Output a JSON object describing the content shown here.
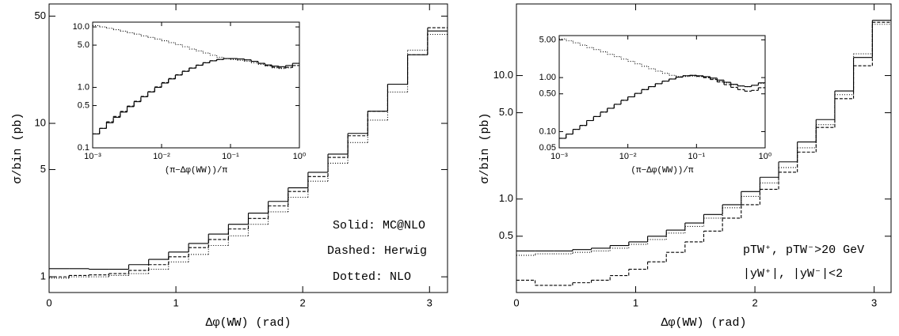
{
  "chart_data": [
    {
      "type": "histogram",
      "log_y": true,
      "x_label": "Δφ(WW) (rad)",
      "y_label": "σ/bin (pb)",
      "annotations": [
        "Solid: MC@NLO",
        "Dashed: Herwig",
        "Dotted: NLO"
      ],
      "xlim": [
        0,
        3.142
      ],
      "xticks": [
        0,
        1,
        2,
        3
      ],
      "ylim": [
        0.79,
        60
      ],
      "yticks": [
        1,
        5,
        10,
        50
      ],
      "bins": [
        0,
        0.157,
        0.314,
        0.471,
        0.628,
        0.785,
        0.942,
        1.1,
        1.257,
        1.414,
        1.571,
        1.728,
        1.885,
        2.042,
        2.199,
        2.356,
        2.513,
        2.67,
        2.827,
        2.985,
        3.142
      ],
      "series": [
        {
          "line_style": "solid",
          "color": "#000000",
          "values": [
            1.13,
            1.13,
            1.12,
            1.12,
            1.2,
            1.3,
            1.45,
            1.65,
            1.9,
            2.2,
            2.6,
            3.1,
            3.8,
            4.8,
            6.3,
            8.6,
            12,
            18,
            28,
            40
          ]
        },
        {
          "line_style": "dashed",
          "color": "#000000",
          "values": [
            1.0,
            1.02,
            1.03,
            1.05,
            1.1,
            1.2,
            1.35,
            1.55,
            1.75,
            2.05,
            2.4,
            2.9,
            3.6,
            4.5,
            6.0,
            8.3,
            12,
            18,
            28,
            42
          ]
        },
        {
          "line_style": "dotted",
          "color": "#000000",
          "values": [
            0.98,
            1.0,
            1.0,
            1.02,
            1.05,
            1.12,
            1.25,
            1.4,
            1.6,
            1.85,
            2.2,
            2.65,
            3.3,
            4.2,
            5.5,
            7.5,
            10.5,
            16,
            30,
            38
          ]
        }
      ]
    },
    {
      "type": "histogram",
      "log_x": true,
      "log_y": true,
      "x_label": "(π−Δφ(WW))/π",
      "xlim": [
        0.001,
        1
      ],
      "xticks": [
        {
          "value": 0.001,
          "label": "10⁻³"
        },
        {
          "value": 0.01,
          "label": "10⁻²"
        },
        {
          "value": 0.1,
          "label": "10⁻¹"
        },
        {
          "value": 1,
          "label": "10⁰"
        }
      ],
      "ylim": [
        0.1,
        12
      ],
      "yticks": [
        0.1,
        0.5,
        {
          "value": 1,
          "label": "1.0"
        },
        {
          "value": 5,
          "label": "5.0"
        },
        {
          "value": 10,
          "label": "10.0"
        }
      ],
      "bins": [
        0.001,
        0.001259,
        0.001585,
        0.001995,
        0.002512,
        0.003162,
        0.003981,
        0.005012,
        0.00631,
        0.007943,
        0.01,
        0.01259,
        0.01585,
        0.01995,
        0.02512,
        0.03162,
        0.03981,
        0.05012,
        0.0631,
        0.07943,
        0.1,
        0.1259,
        0.1585,
        0.1995,
        0.2512,
        0.3162,
        0.3981,
        0.5012,
        0.631,
        0.7943,
        1
      ],
      "series": [
        {
          "line_style": "solid",
          "color": "#000000",
          "values": [
            0.17,
            0.21,
            0.26,
            0.32,
            0.39,
            0.48,
            0.58,
            0.7,
            0.84,
            1.0,
            1.18,
            1.38,
            1.6,
            1.84,
            2.08,
            2.32,
            2.55,
            2.75,
            2.9,
            3.0,
            3.0,
            2.95,
            2.85,
            2.7,
            2.5,
            2.35,
            2.25,
            2.2,
            2.3,
            2.5
          ]
        },
        {
          "line_style": "dashed",
          "color": "#000000",
          "values": [
            0.17,
            0.21,
            0.27,
            0.33,
            0.4,
            0.49,
            0.59,
            0.71,
            0.85,
            1.02,
            1.2,
            1.4,
            1.62,
            1.86,
            2.1,
            2.34,
            2.56,
            2.76,
            2.9,
            3.0,
            3.0,
            2.95,
            2.85,
            2.7,
            2.5,
            2.3,
            2.15,
            2.1,
            2.15,
            2.3
          ]
        },
        {
          "line_style": "dotted",
          "color": "#000000",
          "values": [
            10.5,
            10,
            9.5,
            9.0,
            8.5,
            8.0,
            7.6,
            7.1,
            6.7,
            6.3,
            5.9,
            5.5,
            5.1,
            4.7,
            4.3,
            4.0,
            3.7,
            3.4,
            3.15,
            3.0,
            2.9,
            2.8,
            2.7,
            2.55,
            2.4,
            2.25,
            2.1,
            2.05,
            2.1,
            2.3
          ]
        }
      ]
    },
    {
      "type": "histogram",
      "log_y": true,
      "x_label": "Δφ(WW) (rad)",
      "y_label": "σ/bin (pb)",
      "annotations": [
        "pTW⁺, pTW⁻>20 GeV",
        "|yW⁺|, |yW⁻|<2"
      ],
      "xlim": [
        0,
        3.142
      ],
      "xticks": [
        0,
        1,
        2,
        3
      ],
      "ylim": [
        0.175,
        38
      ],
      "yticks": [
        0.5,
        {
          "value": 1,
          "label": "1.0"
        },
        {
          "value": 5,
          "label": "5.0"
        },
        {
          "value": 10,
          "label": "10.0"
        }
      ],
      "bins": [
        0,
        0.157,
        0.314,
        0.471,
        0.628,
        0.785,
        0.942,
        1.1,
        1.257,
        1.414,
        1.571,
        1.728,
        1.885,
        2.042,
        2.199,
        2.356,
        2.513,
        2.67,
        2.827,
        2.985,
        3.142
      ],
      "series": [
        {
          "line_style": "solid",
          "color": "#000000",
          "values": [
            0.38,
            0.38,
            0.38,
            0.39,
            0.4,
            0.42,
            0.45,
            0.5,
            0.56,
            0.64,
            0.75,
            0.9,
            1.15,
            1.5,
            2.0,
            2.9,
            4.4,
            7.5,
            14,
            28
          ]
        },
        {
          "line_style": "dashed",
          "color": "#000000",
          "values": [
            0.22,
            0.2,
            0.2,
            0.21,
            0.22,
            0.24,
            0.27,
            0.31,
            0.37,
            0.45,
            0.55,
            0.7,
            0.9,
            1.2,
            1.65,
            2.4,
            3.8,
            6.5,
            12,
            27
          ]
        },
        {
          "line_style": "dotted",
          "color": "#000000",
          "values": [
            0.35,
            0.36,
            0.36,
            0.37,
            0.38,
            0.4,
            0.43,
            0.47,
            0.53,
            0.6,
            0.7,
            0.85,
            1.05,
            1.35,
            1.8,
            2.6,
            4.0,
            7.0,
            15,
            26
          ]
        }
      ]
    },
    {
      "type": "histogram",
      "log_x": true,
      "log_y": true,
      "x_label": "(π−Δφ(WW))/π",
      "xlim": [
        0.001,
        1
      ],
      "xticks": [
        {
          "value": 0.001,
          "label": "10⁻³"
        },
        {
          "value": 0.01,
          "label": "10⁻²"
        },
        {
          "value": 0.1,
          "label": "10⁻¹"
        },
        {
          "value": 1,
          "label": "10⁰"
        }
      ],
      "ylim": [
        0.05,
        6
      ],
      "yticks": [
        0.05,
        {
          "value": 0.1,
          "label": "0.10"
        },
        {
          "value": 0.5,
          "label": "0.50"
        },
        {
          "value": 1,
          "label": "1.00"
        },
        {
          "value": 5,
          "label": "5.00"
        }
      ],
      "bins": [
        0.001,
        0.001259,
        0.001585,
        0.001995,
        0.002512,
        0.003162,
        0.003981,
        0.005012,
        0.00631,
        0.007943,
        0.01,
        0.01259,
        0.01585,
        0.01995,
        0.02512,
        0.03162,
        0.03981,
        0.05012,
        0.0631,
        0.07943,
        0.1,
        0.1259,
        0.1585,
        0.1995,
        0.2512,
        0.3162,
        0.3981,
        0.5012,
        0.631,
        0.7943,
        1
      ],
      "series": [
        {
          "line_style": "solid",
          "color": "#000000",
          "values": [
            0.075,
            0.09,
            0.11,
            0.13,
            0.16,
            0.19,
            0.23,
            0.27,
            0.32,
            0.38,
            0.44,
            0.51,
            0.6,
            0.68,
            0.77,
            0.86,
            0.94,
            1.02,
            1.08,
            1.1,
            1.08,
            1.04,
            0.98,
            0.9,
            0.82,
            0.75,
            0.7,
            0.68,
            0.72,
            0.8
          ]
        },
        {
          "line_style": "dashed",
          "color": "#000000",
          "values": [
            0.075,
            0.09,
            0.11,
            0.13,
            0.16,
            0.19,
            0.23,
            0.27,
            0.32,
            0.38,
            0.44,
            0.51,
            0.6,
            0.68,
            0.77,
            0.86,
            0.94,
            1.02,
            1.08,
            1.1,
            1.06,
            1.0,
            0.92,
            0.83,
            0.74,
            0.66,
            0.6,
            0.56,
            0.58,
            0.65
          ]
        },
        {
          "line_style": "dotted",
          "color": "#000000",
          "values": [
            5.2,
            4.8,
            4.4,
            4.0,
            3.6,
            3.3,
            3.0,
            2.7,
            2.45,
            2.2,
            2.0,
            1.8,
            1.62,
            1.46,
            1.32,
            1.2,
            1.1,
            1.05,
            1.05,
            1.06,
            1.04,
            1.0,
            0.94,
            0.87,
            0.8,
            0.74,
            0.7,
            0.68,
            0.72,
            0.78
          ]
        }
      ]
    }
  ]
}
